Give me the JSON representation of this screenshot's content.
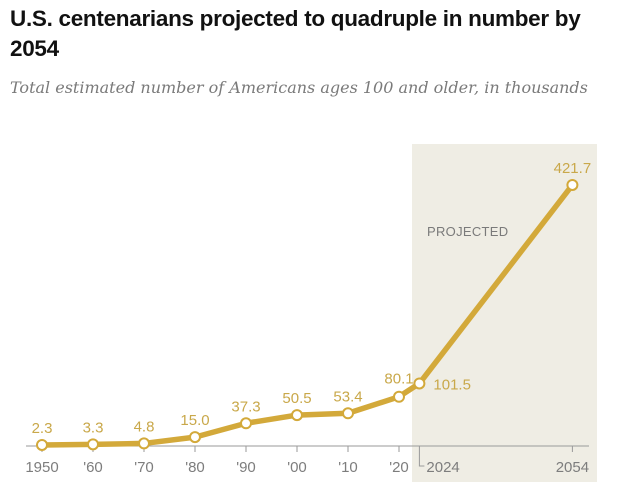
{
  "chart_data": {
    "type": "line",
    "title": "U.S. centenarians projected to quadruple in number by 2054",
    "subtitle": "Total estimated number of Americans ages 100 and older, in thousands",
    "xlabel": "",
    "ylabel": "",
    "x": [
      1950,
      1960,
      1970,
      1980,
      1990,
      2000,
      2010,
      2020,
      2024,
      2054
    ],
    "x_tick_labels": [
      "1950",
      "'60",
      "'70",
      "'80",
      "'90",
      "'00",
      "'10",
      "'20",
      "2024",
      "2054"
    ],
    "series": [
      {
        "name": "Centenarians (thousands)",
        "values": [
          2.3,
          3.3,
          4.8,
          15.0,
          37.3,
          50.5,
          53.4,
          80.1,
          101.5,
          421.7
        ],
        "data_labels": [
          "2.3",
          "3.3",
          "4.8",
          "15.0",
          "37.3",
          "50.5",
          "53.4",
          "80.1",
          "101.5",
          "421.7"
        ]
      }
    ],
    "ylim": [
      0,
      421.7
    ],
    "grid": false,
    "annotations": [
      {
        "text": "PROJECTED",
        "x_range": [
          2024,
          2054
        ]
      }
    ],
    "colors": {
      "line": "#d3a93a",
      "label": "#c9a84a",
      "projected_shade": "#efede4",
      "axis": "#9a9a9a"
    }
  }
}
